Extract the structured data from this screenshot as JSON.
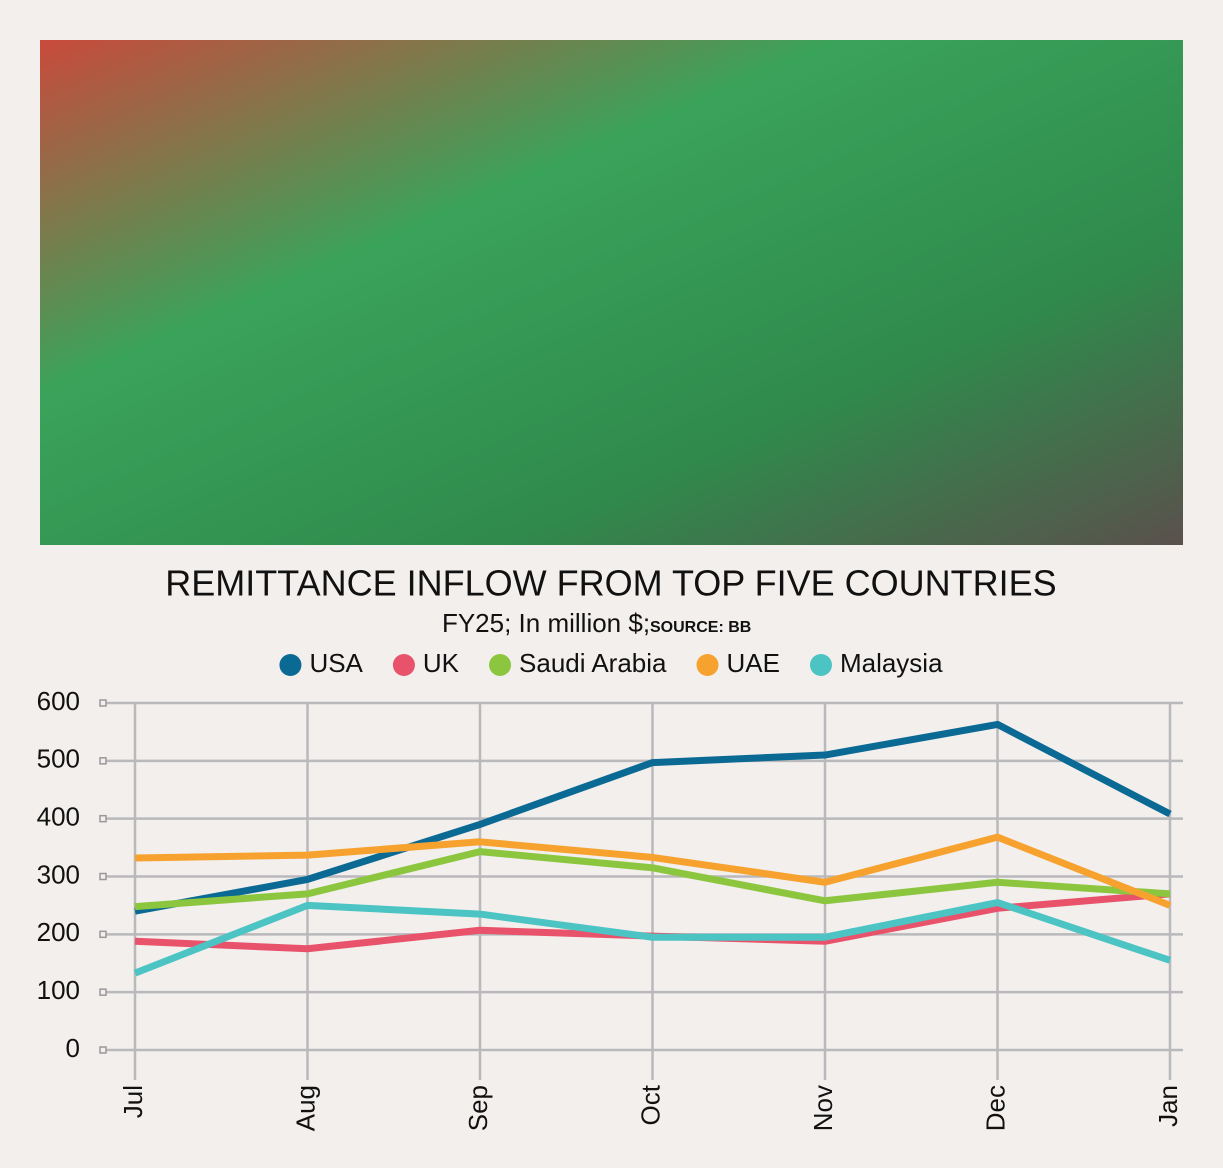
{
  "chart_data": {
    "type": "line",
    "title": "REMITTANCE INFLOW FROM TOP FIVE COUNTRIES",
    "subtitle": "FY25; In million $;",
    "source": "SOURCE: BB",
    "categories": [
      "Jul",
      "Aug",
      "Sep",
      "Oct",
      "Nov",
      "Dec",
      "Jan"
    ],
    "series": [
      {
        "name": "USA",
        "color": "#0a6a94",
        "values": [
          240,
          295,
          390,
          497,
          510,
          563,
          408
        ]
      },
      {
        "name": "UK",
        "color": "#e8526a",
        "values": [
          188,
          175,
          207,
          197,
          188,
          245,
          270
        ]
      },
      {
        "name": "Saudi Arabia",
        "color": "#8cc63f",
        "values": [
          248,
          270,
          343,
          315,
          258,
          290,
          270
        ]
      },
      {
        "name": "UAE",
        "color": "#f7a22e",
        "values": [
          332,
          337,
          360,
          333,
          290,
          368,
          250
        ]
      },
      {
        "name": "Malaysia",
        "color": "#4cc4c4",
        "values": [
          133,
          250,
          235,
          195,
          195,
          255,
          155
        ]
      }
    ],
    "ylim": [
      0,
      600
    ],
    "yticks": [
      0,
      100,
      200,
      300,
      400,
      500,
      600
    ],
    "grid": true
  }
}
